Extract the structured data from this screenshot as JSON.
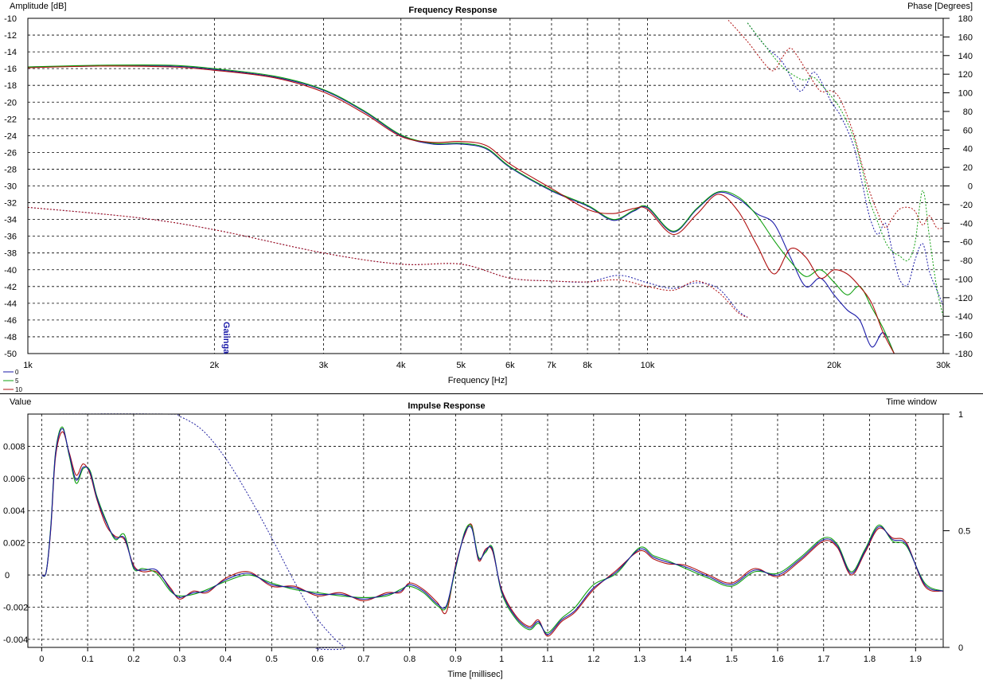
{
  "watermark": "Gaiinga",
  "colors": {
    "series_0": "#1a1aa8",
    "series_5": "#10a010",
    "series_10": "#b01010",
    "grid": "#000000",
    "window": "#2020a0"
  },
  "chart_data": [
    {
      "type": "line",
      "title": "Frequency Response",
      "ylabel": "Amplitude [dB]",
      "y2label": "Phase [Degrees]",
      "xlabel": "Frequency [Hz]",
      "xscale": "log",
      "xlim": [
        1000,
        30000
      ],
      "ylim": [
        -50,
        -10
      ],
      "y2lim": [
        -180,
        180
      ],
      "grid": true,
      "legend": [
        "0",
        "5",
        "10"
      ],
      "xticks": [
        {
          "v": 1000,
          "label": "1k"
        },
        {
          "v": 2000,
          "label": "2k"
        },
        {
          "v": 3000,
          "label": "3k"
        },
        {
          "v": 4000,
          "label": "4k"
        },
        {
          "v": 5000,
          "label": "5k"
        },
        {
          "v": 6000,
          "label": "6k"
        },
        {
          "v": 7000,
          "label": "7k"
        },
        {
          "v": 8000,
          "label": "8k"
        },
        {
          "v": 10000,
          "label": "10k"
        },
        {
          "v": 20000,
          "label": "20k"
        },
        {
          "v": 30000,
          "label": "30k"
        }
      ],
      "xminor": [
        9000
      ],
      "yticks": [
        "-10",
        "-12",
        "-14",
        "-16",
        "-18",
        "-20",
        "-22",
        "-24",
        "-26",
        "-28",
        "-30",
        "-32",
        "-34",
        "-36",
        "-38",
        "-40",
        "-42",
        "-44",
        "-46",
        "-48",
        "-50"
      ],
      "y2ticks": [
        "180",
        "160",
        "140",
        "120",
        "100",
        "80",
        "60",
        "40",
        "20",
        "0",
        "-20",
        "-40",
        "-60",
        "-80",
        "-100",
        "-120",
        "-140",
        "-160",
        "-180"
      ],
      "amplitude_series": [
        {
          "name": "0",
          "x": [
            1000,
            1300,
            1700,
            2000,
            2500,
            3000,
            3500,
            4000,
            4500,
            5000,
            5500,
            6000,
            7000,
            8000,
            8800,
            9500,
            10000,
            11000,
            12000,
            13000,
            14000,
            15000,
            16000,
            17000,
            18000,
            19000,
            20000,
            21000,
            22000,
            23000,
            24000,
            25000
          ],
          "y": [
            -15.8,
            -15.7,
            -15.7,
            -16.1,
            -17.0,
            -18.6,
            -21.2,
            -24.0,
            -25.0,
            -25.0,
            -25.6,
            -27.8,
            -30.6,
            -32.4,
            -34.1,
            -33.0,
            -32.6,
            -35.5,
            -32.8,
            -30.8,
            -31.5,
            -33.3,
            -34.5,
            -38.5,
            -42.0,
            -41.0,
            -43.0,
            -44.8,
            -46.0,
            -49.2,
            -47.5,
            -50.0
          ]
        },
        {
          "name": "5",
          "x": [
            1000,
            1300,
            1700,
            2000,
            2500,
            3000,
            3500,
            4000,
            4500,
            5000,
            5500,
            6000,
            7000,
            8000,
            8800,
            9500,
            10000,
            11000,
            12000,
            13000,
            14000,
            15000,
            16000,
            17000,
            18000,
            19000,
            20000,
            21000,
            22000,
            23000,
            24000,
            25000
          ],
          "y": [
            -15.8,
            -15.6,
            -15.6,
            -16.0,
            -16.9,
            -18.5,
            -21.1,
            -23.9,
            -24.9,
            -24.9,
            -25.5,
            -27.7,
            -30.5,
            -32.3,
            -34.0,
            -32.9,
            -32.5,
            -35.4,
            -32.7,
            -30.7,
            -31.3,
            -33.5,
            -36.5,
            -39.0,
            -40.8,
            -40.0,
            -41.5,
            -43.0,
            -42.0,
            -44.5,
            -47.0,
            -50.0
          ]
        },
        {
          "name": "10",
          "x": [
            1000,
            1300,
            1700,
            2000,
            2500,
            3000,
            3500,
            4000,
            4500,
            5000,
            5500,
            6000,
            7000,
            8000,
            8800,
            9500,
            10000,
            11000,
            12000,
            13000,
            14000,
            15000,
            16000,
            17000,
            18000,
            19000,
            20000,
            21000,
            22000,
            23000,
            24000,
            25000
          ],
          "y": [
            -15.9,
            -15.7,
            -15.8,
            -16.2,
            -17.1,
            -18.8,
            -21.4,
            -24.1,
            -24.8,
            -24.7,
            -25.2,
            -27.4,
            -30.3,
            -32.8,
            -33.3,
            -32.7,
            -32.8,
            -35.8,
            -33.4,
            -31.0,
            -33.0,
            -37.0,
            -40.5,
            -37.5,
            -38.5,
            -41.0,
            -40.0,
            -40.5,
            -42.0,
            -44.0,
            -47.5,
            -50.0
          ]
        }
      ],
      "phase_series": [
        {
          "name": "0",
          "x": [
            14500,
            15500,
            16500,
            17500,
            18000,
            18500,
            19000,
            19800,
            20500,
            21500,
            22200,
            22800,
            23500,
            24200,
            24800,
            25500,
            26300,
            27000,
            27800,
            28500,
            29300,
            30000
          ],
          "y": [
            175,
            150,
            133,
            103,
            108,
            122,
            114,
            90,
            75,
            43,
            3,
            -32,
            -52,
            -40,
            -68,
            -100,
            -106,
            -80,
            -62,
            -92,
            -112,
            -128
          ]
        },
        {
          "name": "5",
          "x": [
            14500,
            15500,
            16500,
            17500,
            18000,
            18500,
            19000,
            19800,
            20500,
            21500,
            22200,
            22800,
            23500,
            24200,
            24800,
            25500,
            26300,
            27000,
            27800,
            28500,
            29300,
            30000
          ],
          "y": [
            175,
            150,
            128,
            116,
            114,
            117,
            110,
            96,
            82,
            52,
            18,
            -15,
            -38,
            -60,
            -70,
            -75,
            -80,
            -62,
            -5,
            -55,
            -110,
            -140
          ]
        },
        {
          "name": "10",
          "x": [
            13500,
            14500,
            15500,
            16000,
            16500,
            17000,
            17500,
            18200,
            19000,
            19800,
            20500,
            21500,
            22200,
            22800,
            23500,
            24200,
            24800,
            25500,
            26300,
            27000,
            27800,
            28500,
            29300,
            30000
          ],
          "y": [
            178,
            155,
            130,
            124,
            138,
            148,
            138,
            120,
            102,
            102,
            92,
            56,
            22,
            -5,
            -28,
            -45,
            -35,
            -25,
            -23,
            -27,
            -42,
            -32,
            -45,
            -45
          ]
        },
        {
          "name": "0",
          "x": [
            1000,
            1500,
            2000,
            3000,
            4000,
            5000,
            6000,
            7000,
            8000,
            9000,
            10000,
            11000,
            12000,
            13000,
            14000,
            14500
          ],
          "y": [
            -23,
            -34,
            -47,
            -72,
            -84,
            -84,
            -99,
            -102,
            -103,
            -96,
            -104,
            -110,
            -104,
            -110,
            -134,
            -141
          ]
        },
        {
          "name": "10",
          "x": [
            1000,
            1500,
            2000,
            3000,
            4000,
            5000,
            6000,
            7000,
            8000,
            9000,
            10000,
            11000,
            12000,
            13000,
            14000,
            14500
          ],
          "y": [
            -23,
            -34,
            -47,
            -72,
            -84,
            -84,
            -99,
            -102,
            -103,
            -101,
            -108,
            -112,
            -102,
            -114,
            -136,
            -141
          ]
        }
      ]
    },
    {
      "type": "line",
      "title": "Impulse Response",
      "ylabel": "Value",
      "y2label": "Time window",
      "xlabel": "Time [millisec]",
      "xlim": [
        -0.03,
        1.96
      ],
      "ylim": [
        -0.0045,
        0.01
      ],
      "y2lim": [
        0,
        1
      ],
      "grid": true,
      "xticks": [
        "0",
        "0.1",
        "0.2",
        "0.3",
        "0.4",
        "0.5",
        "0.6",
        "0.7",
        "0.8",
        "0.9",
        "1",
        "1.1",
        "1.2",
        "1.3",
        "1.4",
        "1.5",
        "1.6",
        "1.7",
        "1.8",
        "1.9"
      ],
      "yticks": [
        {
          "v": 0.008,
          "label": "0.008"
        },
        {
          "v": 0.006,
          "label": "0.006"
        },
        {
          "v": 0.004,
          "label": "0.004"
        },
        {
          "v": 0.002,
          "label": "0.002"
        },
        {
          "v": 0,
          "label": "0"
        },
        {
          "v": -0.002,
          "label": "-0.002"
        },
        {
          "v": -0.004,
          "label": "-0.004"
        }
      ],
      "y2ticks": [
        {
          "v": 1,
          "label": "1"
        },
        {
          "v": 0.5,
          "label": "0.5"
        },
        {
          "v": 0,
          "label": "0"
        }
      ],
      "impulse_t": [
        0,
        0.01,
        0.02,
        0.03,
        0.045,
        0.06,
        0.075,
        0.09,
        0.105,
        0.12,
        0.14,
        0.16,
        0.18,
        0.2,
        0.22,
        0.25,
        0.28,
        0.3,
        0.33,
        0.36,
        0.4,
        0.45,
        0.5,
        0.55,
        0.6,
        0.65,
        0.7,
        0.75,
        0.78,
        0.8,
        0.83,
        0.86,
        0.88,
        0.9,
        0.92,
        0.935,
        0.95,
        0.965,
        0.98,
        1.0,
        1.03,
        1.06,
        1.08,
        1.1,
        1.13,
        1.16,
        1.2,
        1.25,
        1.3,
        1.33,
        1.36,
        1.4,
        1.45,
        1.5,
        1.55,
        1.6,
        1.65,
        1.7,
        1.73,
        1.76,
        1.79,
        1.82,
        1.85,
        1.88,
        1.92,
        1.96
      ],
      "impulse_series": [
        {
          "name": "0",
          "y": [
            0,
            0.0002,
            0.003,
            0.0075,
            0.0091,
            0.0075,
            0.0059,
            0.0067,
            0.0064,
            0.0048,
            0.0033,
            0.0023,
            0.0023,
            0.0005,
            0.0003,
            0.0003,
            -0.0009,
            -0.0014,
            -0.0011,
            -0.001,
            -0.0003,
            0.0001,
            -0.0006,
            -0.0008,
            -0.0012,
            -0.0012,
            -0.0015,
            -0.0012,
            -0.001,
            -0.0006,
            -0.001,
            -0.0018,
            -0.0019,
            0.0005,
            0.0026,
            0.0029,
            0.001,
            0.0015,
            0.0016,
            -0.001,
            -0.0026,
            -0.0033,
            -0.0029,
            -0.0037,
            -0.0028,
            -0.0022,
            -0.0008,
            0.0002,
            0.0016,
            0.0011,
            0.0008,
            0.0005,
            -0.0001,
            -0.0006,
            0.0003,
            0.0,
            0.001,
            0.0022,
            0.0018,
            0.0001,
            0.0015,
            0.003,
            0.0022,
            0.0019,
            -0.0006,
            -0.001
          ]
        },
        {
          "name": "5",
          "y": [
            0,
            0.0002,
            0.0031,
            0.0076,
            0.0092,
            0.0074,
            0.0057,
            0.0066,
            0.0065,
            0.0049,
            0.0034,
            0.0022,
            0.0025,
            0.0004,
            0.0004,
            0.0001,
            -0.001,
            -0.0013,
            -0.0012,
            -0.0009,
            -0.0004,
            0.0,
            -0.0005,
            -0.0009,
            -0.0011,
            -0.0013,
            -0.0014,
            -0.0013,
            -0.0009,
            -0.0007,
            -0.0011,
            -0.0019,
            -0.002,
            0.0004,
            0.0027,
            0.003,
            0.0011,
            0.0014,
            0.0017,
            -0.0011,
            -0.0027,
            -0.0034,
            -0.003,
            -0.0036,
            -0.0027,
            -0.002,
            -0.0006,
            0.0001,
            0.0017,
            0.0012,
            0.0009,
            0.0004,
            -0.0002,
            -0.0007,
            0.0002,
            0.0001,
            0.0011,
            0.0023,
            0.0019,
            0.0002,
            0.0016,
            0.0031,
            0.0021,
            0.0018,
            -0.0005,
            -0.001
          ]
        },
        {
          "name": "10",
          "y": [
            0,
            0.0002,
            0.0029,
            0.0073,
            0.0089,
            0.0076,
            0.0062,
            0.0069,
            0.0063,
            0.0047,
            0.0031,
            0.0024,
            0.0022,
            0.0006,
            0.0002,
            0.0002,
            -0.0008,
            -0.0015,
            -0.001,
            -0.0011,
            -0.0002,
            0.0002,
            -0.0007,
            -0.0007,
            -0.0013,
            -0.0011,
            -0.0016,
            -0.0011,
            -0.0011,
            -0.0005,
            -0.0009,
            -0.0017,
            -0.0023,
            0.0006,
            0.0025,
            0.0031,
            0.0009,
            0.0016,
            0.0015,
            -0.0009,
            -0.0025,
            -0.0032,
            -0.0028,
            -0.0038,
            -0.0029,
            -0.0023,
            -0.0009,
            0.0003,
            0.0015,
            0.001,
            0.0007,
            0.0006,
            0.0,
            -0.0005,
            0.0004,
            -0.0001,
            0.0009,
            0.0021,
            0.0017,
            0.0,
            0.0014,
            0.0029,
            0.0023,
            0.002,
            -0.0007,
            -0.001
          ]
        }
      ],
      "time_window": {
        "x": [
          -0.01,
          0.27,
          0.3,
          0.35,
          0.4,
          0.45,
          0.5,
          0.55,
          0.6,
          0.66,
          0.7,
          1.96
        ],
        "y": [
          1,
          1,
          0.99,
          0.93,
          0.81,
          0.65,
          0.47,
          0.28,
          0.12,
          0.0,
          0.0,
          0.0
        ]
      }
    }
  ]
}
